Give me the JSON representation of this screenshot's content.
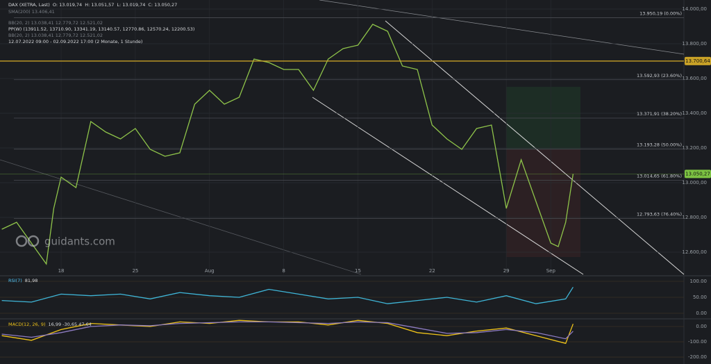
{
  "header": {
    "instrument": "DAX (XETRA, Last)",
    "open": "O: 13.019,74",
    "high": "H: 13.051,57",
    "low": "L: 13.019,74",
    "close": "C: 13.050,27",
    "indicators": [
      "SMA(200) 13.406,41",
      "BB(20, 2) 13.038,41 12.779,72 12.521,02",
      "PP(W) (13911.52, 13710.90, 13341.19, 13140.57, 12770.86, 12570.24, 12200.53)",
      "BB(20, 2) 13.038,41 12.779,72 12.521,02"
    ],
    "range": "12.07.2022 09:00 - 02.09.2022 17:00 (2 Monate, 1 Stunde)",
    "watermark": "guidants.com"
  },
  "chart_data": [
    {
      "type": "line",
      "color": "#8fc44a",
      "x": [
        0,
        1,
        2,
        3,
        3.5,
        4,
        5,
        6,
        7,
        8,
        9,
        10,
        11,
        12,
        13,
        14,
        15,
        16,
        17,
        18,
        19,
        20,
        21,
        22,
        23,
        24,
        25,
        26,
        27,
        28,
        29,
        30,
        31,
        32,
        33,
        34,
        35,
        36,
        37,
        37.5,
        38,
        38.5
      ],
      "values": [
        12732,
        12772,
        12652,
        12532,
        12852,
        13032,
        12972,
        13352,
        13292,
        13252,
        13312,
        13192,
        13152,
        13172,
        13452,
        13532,
        13452,
        13492,
        13712,
        13692,
        13652,
        13652,
        13532,
        13712,
        13772,
        13792,
        13912,
        13872,
        13672,
        13652,
        13332,
        13252,
        13192,
        13312,
        13332,
        12852,
        13132,
        12892,
        12652,
        12632,
        12772,
        13050.27
      ],
      "xlim": [
        -0.12,
        45.97
      ],
      "xticks": [
        {
          "value": 4,
          "label": "18"
        },
        {
          "value": 9,
          "label": "25"
        },
        {
          "value": 14,
          "label": "Aug"
        },
        {
          "value": 19,
          "label": "8"
        },
        {
          "value": 24,
          "label": "15"
        },
        {
          "value": 29,
          "label": "22"
        },
        {
          "value": 34,
          "label": "29"
        },
        {
          "value": 37,
          "label": "Sep"
        }
      ],
      "ylim": [
        12472,
        14052
      ],
      "yticks": [
        {
          "value": 12600,
          "label": "12.600,00"
        },
        {
          "value": 12800,
          "label": "12.800,00"
        },
        {
          "value": 13000,
          "label": "13.000,00"
        },
        {
          "value": 13200,
          "label": "13.200,00"
        },
        {
          "value": 13400,
          "label": "13.400,00"
        },
        {
          "value": 13600,
          "label": "13.600,00"
        },
        {
          "value": 13800,
          "label": "13.800,00"
        },
        {
          "value": 14000,
          "label": "14.000,00"
        }
      ],
      "levels": [
        {
          "value": 13950.19,
          "label": "13.950,19 (0.00%)"
        },
        {
          "value": 13592.93,
          "label": "13.592,93 (23.60%)"
        },
        {
          "value": 13371.91,
          "label": "13.371,91 (38.20%)"
        },
        {
          "value": 13193.28,
          "label": "13.193,28 (50.00%)"
        },
        {
          "value": 13014.65,
          "label": "13.014,65 (61.80%)"
        },
        {
          "value": 12793.63,
          "label": "12.793,63 (76.40%)"
        }
      ],
      "badges": [
        {
          "value": 13700.64,
          "label": "13.700,64",
          "color": "#c9a227"
        },
        {
          "value": 13050.27,
          "label": "13.050,27",
          "color": "#7cc242"
        }
      ]
    },
    {
      "type": "line",
      "title": "RSI(7)",
      "subtitle": "81,98",
      "color": "#3fb6d8",
      "x": [
        0,
        2,
        4,
        6,
        8,
        10,
        12,
        14,
        16,
        18,
        20,
        22,
        24,
        26,
        28,
        30,
        32,
        34,
        36,
        38,
        38.5
      ],
      "values": [
        40,
        35,
        60,
        55,
        60,
        45,
        65,
        55,
        50,
        75,
        60,
        45,
        50,
        30,
        40,
        50,
        35,
        55,
        30,
        45,
        81.98
      ],
      "xlim": [
        -0.12,
        45.97
      ],
      "ylim": [
        -15.2,
        110.9
      ],
      "yticks": [
        {
          "value": 100,
          "label": "100.00"
        },
        {
          "value": 50,
          "label": "50.00"
        },
        {
          "value": 0,
          "label": "0.00"
        }
      ]
    },
    {
      "type": "line",
      "title": "MACD(12, 26, 9)",
      "subtitle": "16,99 -30,65 47,64",
      "x": [
        0,
        2,
        4,
        6,
        8,
        10,
        12,
        14,
        16,
        18,
        20,
        22,
        24,
        26,
        28,
        30,
        32,
        34,
        36,
        38,
        38.5
      ],
      "series": [
        {
          "color": "#f0c419",
          "values": [
            -60,
            -90,
            -20,
            20,
            10,
            0,
            30,
            20,
            40,
            30,
            30,
            10,
            40,
            20,
            -40,
            -60,
            -30,
            -10,
            -60,
            -110,
            16.99
          ]
        },
        {
          "color": "#8e7cc3",
          "values": [
            -50,
            -70,
            -40,
            0,
            10,
            5,
            20,
            25,
            30,
            30,
            25,
            20,
            30,
            25,
            -10,
            -45,
            -40,
            -20,
            -40,
            -80,
            -30.65
          ]
        }
      ],
      "xlim": [
        -0.12,
        45.97
      ],
      "ylim": [
        -245,
        41
      ],
      "yticks": [
        {
          "value": 0,
          "label": "0.00"
        },
        {
          "value": -100,
          "label": "-100.00"
        },
        {
          "value": -200,
          "label": "-200.00"
        }
      ]
    }
  ]
}
